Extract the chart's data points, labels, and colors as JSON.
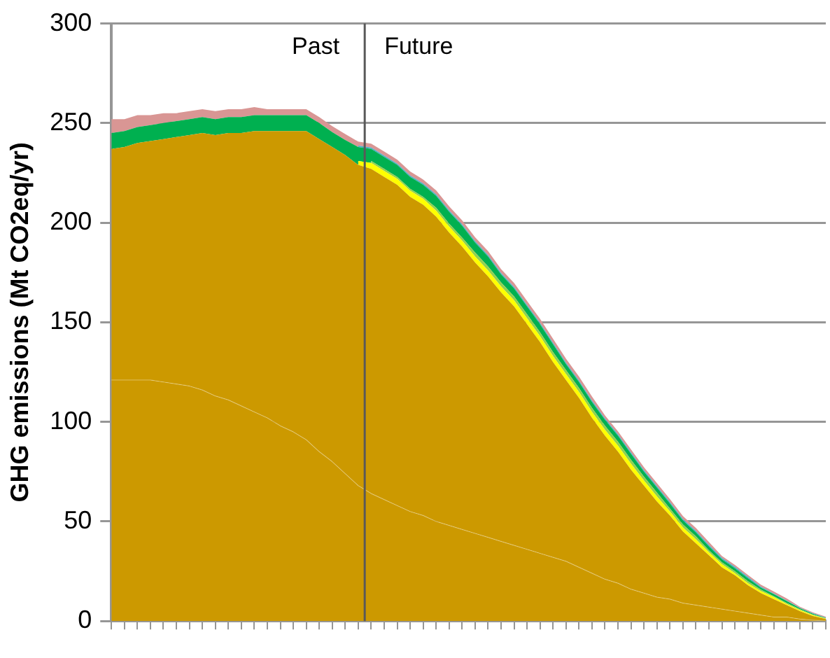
{
  "chart_data": {
    "type": "area",
    "stacked": true,
    "ylabel": "GHG emissions (Mt CO2eq/yr)",
    "categories": [
      null,
      null,
      null,
      null,
      null,
      null,
      null,
      null,
      null,
      null,
      null,
      null,
      null,
      null,
      null,
      null,
      null,
      null,
      null,
      null,
      null,
      null,
      null,
      null,
      null,
      null,
      null,
      null,
      null,
      null,
      null,
      null,
      null,
      null,
      null,
      null,
      null,
      null,
      null,
      null,
      null,
      null,
      null,
      null,
      null,
      null,
      null,
      null,
      null,
      null,
      null,
      null,
      null,
      null,
      null,
      null
    ],
    "ylim": [
      0,
      300
    ],
    "yticks": [
      0,
      50,
      100,
      150,
      200,
      250,
      300
    ],
    "grid": "y",
    "legend": false,
    "marker": "none",
    "series": [
      {
        "color": "#cc9900",
        "values": [
          121,
          121,
          121,
          121,
          120,
          119,
          118,
          116,
          113,
          111,
          108,
          105,
          102,
          98,
          95,
          91,
          85,
          80,
          74,
          68,
          64,
          61,
          58,
          55,
          53,
          50,
          48,
          46,
          44,
          42,
          40,
          38,
          36,
          34,
          32,
          30,
          27,
          24,
          21,
          19,
          16,
          14,
          12,
          11,
          9,
          8,
          7,
          6,
          5,
          4,
          3,
          2,
          2,
          1,
          0.5,
          0
        ]
      },
      {
        "color": "#cc9900",
        "values": [
          116,
          117,
          119,
          120,
          122,
          124,
          126,
          129,
          131,
          134,
          137,
          141,
          144,
          148,
          151,
          155,
          157,
          158,
          160,
          161,
          163,
          162,
          161,
          158,
          156,
          153,
          147,
          142,
          136,
          131,
          125,
          120,
          113,
          106,
          98,
          91,
          85,
          78,
          72,
          66,
          60,
          54,
          48,
          42,
          36,
          31,
          26,
          21,
          18,
          14,
          11,
          9,
          6,
          4,
          2,
          1
        ]
      },
      {
        "color": "#ffff00",
        "values": [
          null,
          null,
          null,
          null,
          null,
          null,
          null,
          null,
          null,
          null,
          null,
          null,
          null,
          null,
          null,
          null,
          null,
          null,
          null,
          2,
          3,
          3,
          3,
          3,
          3,
          3,
          3,
          3,
          3,
          3,
          3,
          3,
          3,
          3,
          3,
          3,
          3,
          3,
          3,
          3,
          3,
          2.5,
          2.5,
          2,
          2,
          2,
          1.5,
          1.5,
          1,
          1,
          1,
          1,
          0.5,
          0.5,
          0.5,
          0.2
        ]
      },
      {
        "color": "#92d050",
        "values": [
          null,
          null,
          null,
          null,
          null,
          null,
          null,
          null,
          null,
          null,
          null,
          null,
          null,
          null,
          null,
          null,
          null,
          null,
          null,
          null,
          1,
          1,
          1,
          1,
          1,
          1.5,
          1.5,
          1.5,
          2,
          2,
          2,
          2,
          2,
          2,
          2,
          2,
          2,
          2,
          2,
          2,
          2,
          2,
          2,
          1.5,
          1.5,
          1.5,
          1,
          1,
          1,
          1,
          0.8,
          0.5,
          0.5,
          0.5,
          0.2,
          0.2
        ]
      },
      {
        "color": "#00b050",
        "values": [
          8,
          8,
          8,
          8,
          8,
          8,
          8,
          8,
          8,
          8,
          8,
          8,
          8,
          8,
          8,
          8,
          8,
          7.5,
          7.5,
          7,
          6,
          6,
          6,
          6,
          6,
          6,
          6,
          6,
          5,
          5,
          4,
          4,
          4,
          4,
          4,
          3,
          3,
          3,
          3,
          3,
          3,
          2.5,
          2.5,
          2.5,
          2,
          2,
          2,
          1.5,
          1.5,
          1.5,
          1,
          1,
          1,
          0.5,
          0.5,
          0.2
        ]
      },
      {
        "color": "#4bacc6",
        "values": [
          null,
          null,
          null,
          null,
          null,
          null,
          null,
          null,
          null,
          null,
          null,
          null,
          null,
          null,
          null,
          null,
          null,
          null,
          null,
          0.7,
          0.7,
          0.7,
          0.7,
          0.7,
          0.7,
          0.7,
          0.7,
          0.7,
          0.7,
          0.7,
          0.7,
          0.7,
          0.7,
          0.7,
          0.7,
          0.7,
          0.7,
          0.7,
          0.7,
          0.7,
          0.7,
          0.7,
          0.7,
          0.7,
          0.7,
          0.7,
          0.7,
          0.7,
          0.7,
          0.7,
          0.5,
          0.3,
          0.3,
          0.2,
          0.2,
          0.1
        ]
      },
      {
        "color": "#d99694",
        "values": [
          7,
          6,
          6,
          5,
          5,
          4,
          4,
          4,
          4,
          4,
          4,
          4,
          3,
          3,
          3,
          3,
          3,
          3,
          3,
          2,
          2,
          2,
          2,
          2,
          2,
          2,
          2,
          2,
          2,
          2,
          2,
          2,
          2,
          2,
          2,
          2,
          2,
          2,
          1.5,
          1.5,
          1.5,
          1.5,
          1.5,
          1.5,
          1.5,
          1.5,
          1.5,
          1,
          1,
          1,
          1,
          1,
          1,
          0.5,
          0.5,
          0.5
        ]
      }
    ],
    "annotations": [
      "Past",
      "Future"
    ]
  }
}
